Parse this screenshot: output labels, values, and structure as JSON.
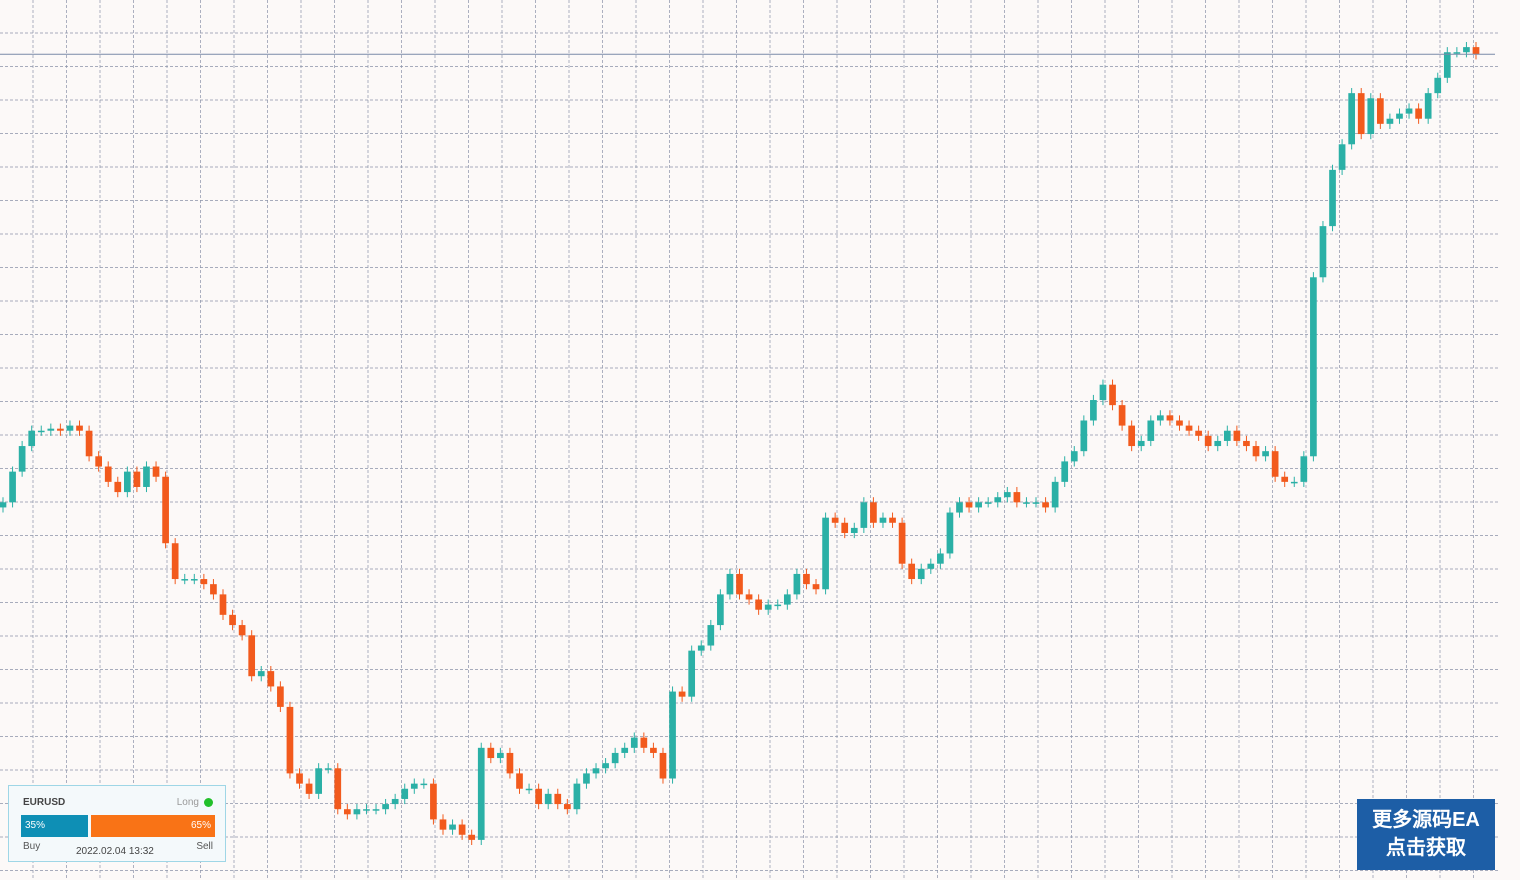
{
  "symbol": "EURUSD",
  "bias": "Long",
  "timestamp": "2022.02.04 13:32",
  "buy": {
    "label": "Buy",
    "value": 35,
    "value_label": "35%",
    "color": "#0e8fb5"
  },
  "sell": {
    "label": "Sell",
    "value": 65,
    "value_label": "65%",
    "color": "#f97316"
  },
  "promo": {
    "line1": "更多源码EA",
    "line2": "点击获取"
  },
  "chart": {
    "type": "candlestick",
    "up_color": "#2bb0a6",
    "down_color": "#f25a1d",
    "candles": {
      "open": [
        395,
        400,
        430,
        455,
        470,
        470,
        472,
        470,
        475,
        470,
        445,
        435,
        420,
        410,
        430,
        415,
        435,
        425,
        360,
        325,
        325,
        325,
        320,
        310,
        290,
        280,
        270,
        230,
        235,
        220,
        200,
        135,
        125,
        115,
        140,
        140,
        100,
        95,
        100,
        100,
        100,
        105,
        110,
        120,
        125,
        125,
        90,
        80,
        85,
        75,
        70,
        160,
        150,
        155,
        135,
        120,
        120,
        105,
        115,
        105,
        100,
        125,
        135,
        140,
        145,
        155,
        160,
        170,
        160,
        155,
        130,
        215,
        210,
        255,
        260,
        280,
        310,
        330,
        310,
        305,
        295,
        300,
        300,
        310,
        330,
        320,
        315,
        385,
        380,
        370,
        375,
        400,
        380,
        385,
        380,
        340,
        325,
        335,
        340,
        350,
        390,
        400,
        395,
        400,
        400,
        405,
        410,
        400,
        400,
        400,
        395,
        420,
        440,
        450,
        480,
        500,
        515,
        495,
        475,
        455,
        460,
        480,
        485,
        480,
        475,
        470,
        465,
        455,
        460,
        470,
        460,
        455,
        445,
        450,
        425,
        420,
        420,
        445,
        620,
        670,
        725,
        750,
        800,
        760,
        795,
        770,
        775,
        780,
        785,
        775,
        800,
        815,
        840,
        840,
        845
      ],
      "high": [
        405,
        435,
        460,
        475,
        475,
        477,
        477,
        480,
        480,
        475,
        450,
        440,
        425,
        435,
        435,
        440,
        440,
        430,
        365,
        330,
        330,
        330,
        325,
        315,
        295,
        285,
        275,
        240,
        240,
        225,
        205,
        140,
        130,
        145,
        145,
        145,
        105,
        105,
        105,
        105,
        110,
        115,
        125,
        130,
        130,
        130,
        95,
        90,
        90,
        80,
        165,
        165,
        160,
        160,
        140,
        125,
        125,
        120,
        120,
        110,
        130,
        140,
        145,
        150,
        160,
        165,
        175,
        175,
        165,
        160,
        220,
        220,
        260,
        265,
        285,
        315,
        335,
        335,
        315,
        310,
        305,
        305,
        315,
        335,
        335,
        325,
        390,
        390,
        385,
        380,
        405,
        405,
        390,
        390,
        385,
        345,
        340,
        345,
        355,
        395,
        405,
        405,
        405,
        405,
        410,
        415,
        415,
        405,
        405,
        405,
        425,
        445,
        455,
        485,
        505,
        520,
        520,
        500,
        480,
        465,
        485,
        490,
        490,
        485,
        480,
        475,
        470,
        465,
        475,
        475,
        465,
        460,
        455,
        455,
        430,
        425,
        450,
        625,
        675,
        730,
        755,
        805,
        805,
        800,
        800,
        780,
        785,
        790,
        790,
        805,
        820,
        845,
        845,
        850,
        850
      ],
      "low": [
        390,
        395,
        425,
        450,
        465,
        465,
        465,
        465,
        465,
        440,
        430,
        415,
        405,
        405,
        410,
        410,
        420,
        355,
        320,
        320,
        320,
        315,
        305,
        285,
        275,
        265,
        225,
        225,
        215,
        195,
        130,
        120,
        110,
        110,
        135,
        95,
        90,
        90,
        95,
        95,
        95,
        100,
        105,
        115,
        120,
        85,
        75,
        75,
        70,
        65,
        65,
        145,
        145,
        130,
        115,
        115,
        100,
        100,
        100,
        95,
        95,
        120,
        130,
        135,
        140,
        150,
        155,
        155,
        150,
        125,
        125,
        205,
        205,
        250,
        255,
        275,
        305,
        305,
        300,
        290,
        290,
        295,
        295,
        305,
        315,
        310,
        310,
        375,
        365,
        365,
        370,
        375,
        375,
        375,
        335,
        320,
        320,
        330,
        335,
        345,
        385,
        390,
        390,
        395,
        395,
        400,
        395,
        395,
        395,
        390,
        390,
        415,
        435,
        445,
        475,
        495,
        490,
        470,
        450,
        450,
        455,
        475,
        475,
        470,
        465,
        460,
        450,
        450,
        455,
        455,
        450,
        440,
        440,
        420,
        415,
        415,
        415,
        440,
        615,
        665,
        720,
        745,
        755,
        755,
        765,
        765,
        770,
        775,
        770,
        770,
        795,
        810,
        835,
        835,
        833
      ],
      "close": [
        400,
        430,
        455,
        470,
        470,
        472,
        470,
        475,
        470,
        445,
        435,
        420,
        410,
        430,
        415,
        435,
        425,
        360,
        325,
        325,
        325,
        320,
        310,
        290,
        280,
        270,
        230,
        235,
        220,
        200,
        135,
        125,
        115,
        140,
        140,
        100,
        95,
        100,
        100,
        100,
        105,
        110,
        120,
        125,
        125,
        90,
        80,
        85,
        75,
        70,
        160,
        150,
        155,
        135,
        120,
        120,
        105,
        115,
        105,
        100,
        125,
        135,
        140,
        145,
        155,
        160,
        170,
        160,
        155,
        130,
        215,
        210,
        255,
        260,
        280,
        310,
        330,
        310,
        305,
        295,
        300,
        300,
        310,
        330,
        320,
        315,
        385,
        380,
        370,
        375,
        400,
        380,
        385,
        380,
        340,
        325,
        335,
        340,
        350,
        390,
        400,
        395,
        400,
        400,
        405,
        410,
        400,
        400,
        400,
        395,
        420,
        440,
        450,
        480,
        500,
        515,
        495,
        475,
        455,
        460,
        480,
        485,
        480,
        475,
        470,
        465,
        455,
        460,
        470,
        460,
        455,
        445,
        450,
        425,
        420,
        420,
        445,
        620,
        670,
        725,
        750,
        800,
        760,
        795,
        770,
        775,
        780,
        785,
        775,
        800,
        815,
        840,
        840,
        845,
        838
      ]
    }
  }
}
